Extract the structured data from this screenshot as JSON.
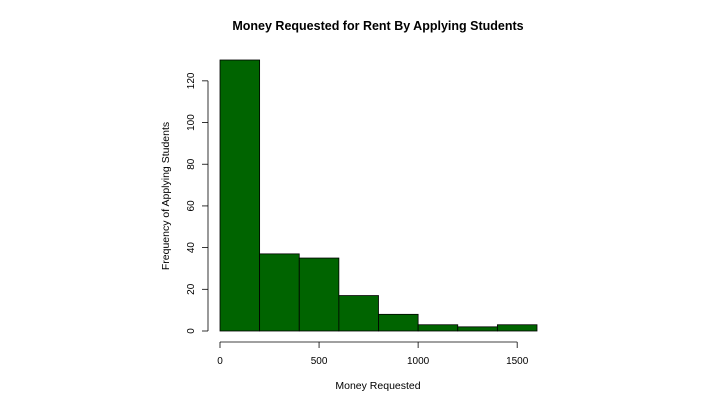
{
  "chart_data": {
    "type": "bar",
    "title": "Money Requested for Rent By Applying Students",
    "xlabel": "Money Requested",
    "ylabel": "Frequency of Applying Students",
    "bins": [
      {
        "start": 0,
        "end": 200,
        "value": 130
      },
      {
        "start": 200,
        "end": 400,
        "value": 37
      },
      {
        "start": 400,
        "end": 600,
        "value": 35
      },
      {
        "start": 600,
        "end": 800,
        "value": 17
      },
      {
        "start": 800,
        "end": 1000,
        "value": 8
      },
      {
        "start": 1000,
        "end": 1200,
        "value": 3
      },
      {
        "start": 1200,
        "end": 1400,
        "value": 2
      },
      {
        "start": 1400,
        "end": 1600,
        "value": 3
      }
    ],
    "xticks": [
      0,
      500,
      1000,
      1500
    ],
    "yticks": [
      0,
      20,
      40,
      60,
      80,
      100,
      120
    ],
    "xlim": [
      0,
      1600
    ],
    "ylim": [
      0,
      130
    ],
    "bar_color": "#006400",
    "grid": false
  }
}
